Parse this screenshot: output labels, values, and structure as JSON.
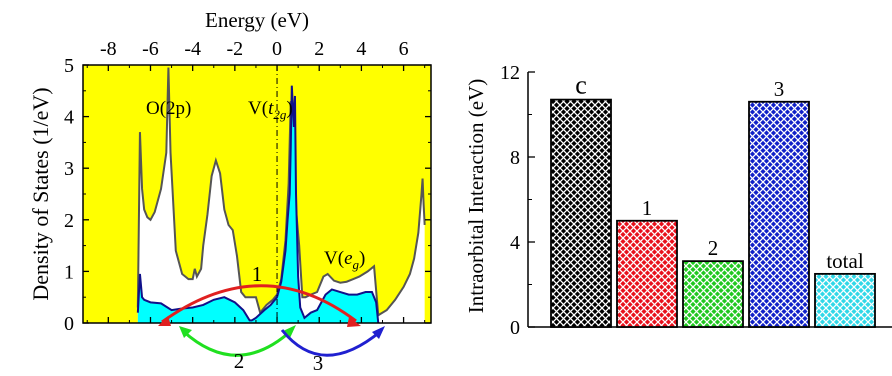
{
  "chart_data": [
    {
      "type": "area",
      "title": "",
      "xlabel_top": "Energy (eV)",
      "ylabel": "Density of States (1/eV)",
      "xlim": [
        -9.2,
        7.3
      ],
      "ylim": [
        0,
        5
      ],
      "x_ticks": [
        -8,
        -6,
        -4,
        -2,
        0,
        2,
        4,
        6
      ],
      "x_tick_labels": [
        "-8",
        "-6",
        "-4",
        "-2",
        "0",
        "2",
        "4",
        "6"
      ],
      "y_ticks": [
        0,
        1,
        2,
        3,
        4,
        5
      ],
      "y_tick_labels": [
        "0",
        "1",
        "2",
        "3",
        "4",
        "5"
      ],
      "fermi_level_x": 0,
      "region_labels": {
        "o2p": "O(2p)",
        "vt2g_prefix": "V(",
        "vt2g_italic": "t",
        "vt2g_sub": "2g",
        "vt2g_suffix": ")",
        "veg_prefix": "V(",
        "veg_italic": "e",
        "veg_sub": "g",
        "veg_suffix": ")"
      },
      "transition_labels": {
        "t1": "1",
        "t2": "2",
        "t3": "3"
      },
      "series": [
        {
          "role": "total_dos_outline",
          "x": [
            -6.6,
            -6.5,
            -6.4,
            -6.3,
            -6.15,
            -6.0,
            -5.8,
            -5.5,
            -5.25,
            -5.15,
            -5.05,
            -4.8,
            -4.5,
            -4.2,
            -4.0,
            -3.9,
            -3.8,
            -3.6,
            -3.5,
            -3.3,
            -3.1,
            -2.9,
            -2.7,
            -2.5,
            -2.3,
            -2.1,
            -1.9,
            -1.7,
            -1.5,
            -1.3,
            -1.1,
            -1.0,
            -0.8,
            -0.5,
            -0.2,
            0.0,
            0.2,
            0.4,
            0.55,
            0.65,
            0.7,
            0.78,
            0.9,
            1.05,
            1.2,
            1.35,
            1.6,
            1.9,
            2.2,
            2.4,
            2.7,
            3.0,
            3.3,
            3.6,
            3.9,
            4.3,
            4.6,
            4.8,
            5.2,
            5.6,
            6.0,
            6.3,
            6.5,
            6.7,
            6.85,
            6.9,
            6.95,
            7.0
          ],
          "values": [
            0.3,
            3.7,
            2.6,
            2.2,
            2.05,
            2.0,
            2.15,
            2.6,
            3.3,
            4.95,
            3.3,
            1.4,
            0.95,
            0.85,
            0.85,
            1.05,
            0.9,
            1.05,
            1.5,
            2.1,
            2.85,
            3.15,
            2.9,
            2.2,
            1.9,
            1.8,
            1.3,
            0.6,
            0.5,
            0.5,
            0.5,
            0.5,
            0.2,
            0.35,
            0.45,
            0.55,
            0.85,
            1.6,
            2.7,
            4.3,
            4.0,
            4.1,
            2.2,
            1.5,
            0.5,
            0.5,
            0.55,
            0.6,
            0.9,
            0.95,
            0.82,
            0.78,
            0.8,
            0.85,
            0.9,
            1.0,
            1.1,
            0.15,
            0.25,
            0.45,
            0.7,
            0.95,
            1.25,
            1.75,
            2.5,
            2.8,
            2.3,
            1.9
          ]
        },
        {
          "role": "v_projected_dos",
          "x": [
            -6.6,
            -6.5,
            -6.4,
            -6.3,
            -6.0,
            -5.5,
            -5.0,
            -4.5,
            -4.0,
            -3.5,
            -3.0,
            -2.5,
            -2.0,
            -1.6,
            -1.3,
            -1.2,
            -1.0,
            -0.6,
            -0.3,
            0.0,
            0.2,
            0.4,
            0.5,
            0.6,
            0.65,
            0.7,
            0.75,
            0.8,
            0.85,
            0.9,
            1.0,
            1.1,
            1.3,
            1.6,
            1.9,
            2.1,
            2.3,
            2.6,
            3.0,
            3.4,
            3.8,
            4.2,
            4.5,
            4.7,
            4.8
          ],
          "values": [
            0.2,
            0.95,
            0.5,
            0.45,
            0.4,
            0.38,
            0.25,
            0.28,
            0.3,
            0.35,
            0.45,
            0.5,
            0.4,
            0.25,
            0.05,
            0.05,
            0.1,
            0.25,
            0.35,
            0.5,
            0.8,
            1.4,
            2.0,
            2.5,
            3.4,
            4.6,
            4.2,
            3.8,
            4.4,
            2.5,
            0.9,
            0.3,
            0.1,
            0.2,
            0.25,
            0.4,
            0.55,
            0.65,
            0.6,
            0.55,
            0.55,
            0.6,
            0.6,
            0.4,
            0.0
          ]
        }
      ]
    },
    {
      "type": "bar",
      "title": "",
      "ylabel": "Intraorbital Interaction (eV)",
      "ylim": [
        0,
        12
      ],
      "y_ticks": [
        0,
        4,
        8,
        12
      ],
      "y_tick_labels": [
        "0",
        "4",
        "8",
        "12"
      ],
      "categories": [
        "c",
        "1",
        "2",
        "3",
        "total"
      ],
      "values": [
        10.7,
        5.0,
        3.1,
        10.6,
        2.5
      ],
      "colors": [
        "#000000",
        "#e8101c",
        "#20c820",
        "#1020c8",
        "#30d8e8"
      ]
    }
  ],
  "colors": {
    "dos_fill": "#ffff00",
    "v_fill": "#00ffff",
    "outline": "#555555",
    "v_line": "#10108a",
    "arrow1": "#e02020",
    "arrow2": "#20e020",
    "arrow3": "#2020d0"
  }
}
